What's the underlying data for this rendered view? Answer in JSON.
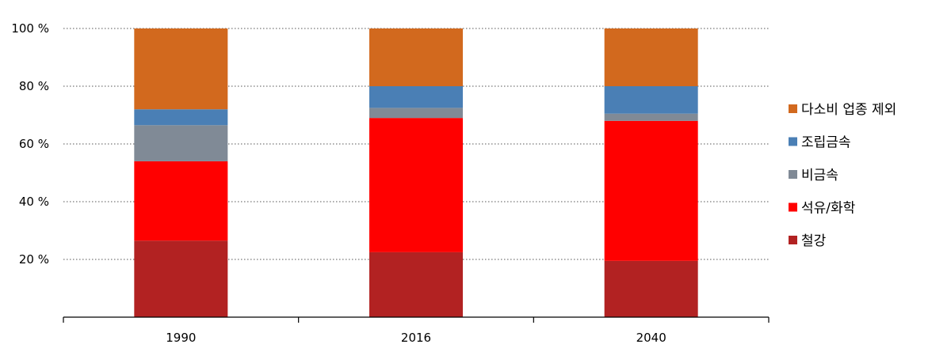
{
  "chart_data": {
    "type": "bar",
    "stacked": true,
    "categories": [
      "1990",
      "2016",
      "2040"
    ],
    "series": [
      {
        "name": "철강",
        "color": "#b22222",
        "values": [
          26.5,
          22.5,
          19.5
        ]
      },
      {
        "name": "석유/화학",
        "color": "#ff0000",
        "values": [
          27.5,
          46.5,
          48.5
        ]
      },
      {
        "name": "비금속",
        "color": "#808a96",
        "values": [
          12.5,
          3.5,
          2.5
        ]
      },
      {
        "name": "조립금속",
        "color": "#4a7fb5",
        "values": [
          5.5,
          7.5,
          9.5
        ]
      },
      {
        "name": "다소비 업종 제외",
        "color": "#d2691e",
        "values": [
          28.0,
          20.0,
          20.0
        ]
      }
    ],
    "yticks": [
      "20 %",
      "40 %",
      "60 %",
      "80 %",
      "100 %"
    ],
    "ylim": [
      0,
      100
    ],
    "grid": true,
    "legend_position": "right"
  }
}
